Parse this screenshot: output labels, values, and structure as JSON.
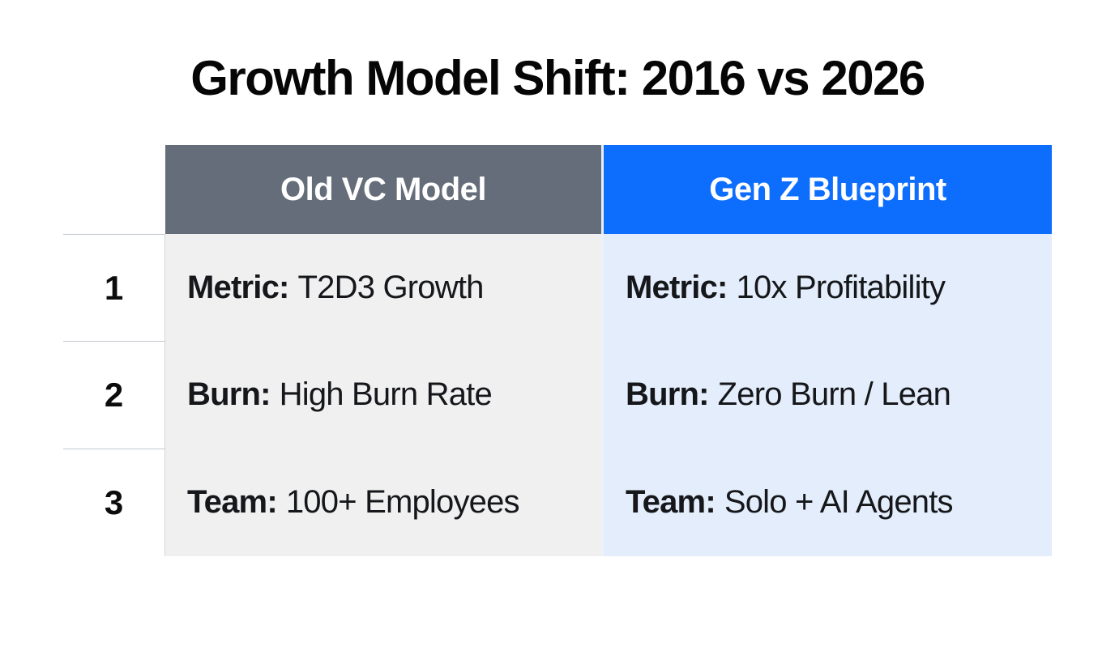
{
  "title": "Growth Model Shift: 2016 vs 2026",
  "table": {
    "columns": [
      {
        "label": "Old VC Model"
      },
      {
        "label": "Gen Z Blueprint"
      }
    ],
    "rows": [
      {
        "num": "1",
        "old": {
          "label": "Metric:",
          "value": "T2D3 Growth"
        },
        "genz": {
          "label": "Metric:",
          "value": "10x Profitability"
        }
      },
      {
        "num": "2",
        "old": {
          "label": "Burn:",
          "value": "High Burn Rate"
        },
        "genz": {
          "label": "Burn:",
          "value": "Zero Burn / Lean"
        }
      },
      {
        "num": "3",
        "old": {
          "label": "Team:",
          "value": "100+ Employees"
        },
        "genz": {
          "label": "Team:",
          "value": "Solo + AI Agents"
        }
      }
    ]
  },
  "colors": {
    "old_header_bg": "#646d79",
    "genz_header_bg": "#0d6efd",
    "old_cell_bg": "#f0f0f1",
    "genz_cell_bg": "#e4edfb",
    "header_text": "#ffffff",
    "body_text": "#15171a",
    "page_bg": "#ffffff"
  },
  "chart_data": {
    "type": "table",
    "title": "Growth Model Shift: 2016 vs 2026",
    "columns": [
      "#",
      "Old VC Model",
      "Gen Z Blueprint"
    ],
    "rows": [
      [
        "1",
        "Metric: T2D3 Growth",
        "Metric: 10x Profitability"
      ],
      [
        "2",
        "Burn: High Burn Rate",
        "Burn: Zero Burn / Lean"
      ],
      [
        "3",
        "Team: 100+ Employees",
        "Team: Solo + AI Agents"
      ]
    ],
    "layout": {
      "header_row": true,
      "row_number_gutter": true,
      "grid": "light horizontal separators"
    }
  }
}
